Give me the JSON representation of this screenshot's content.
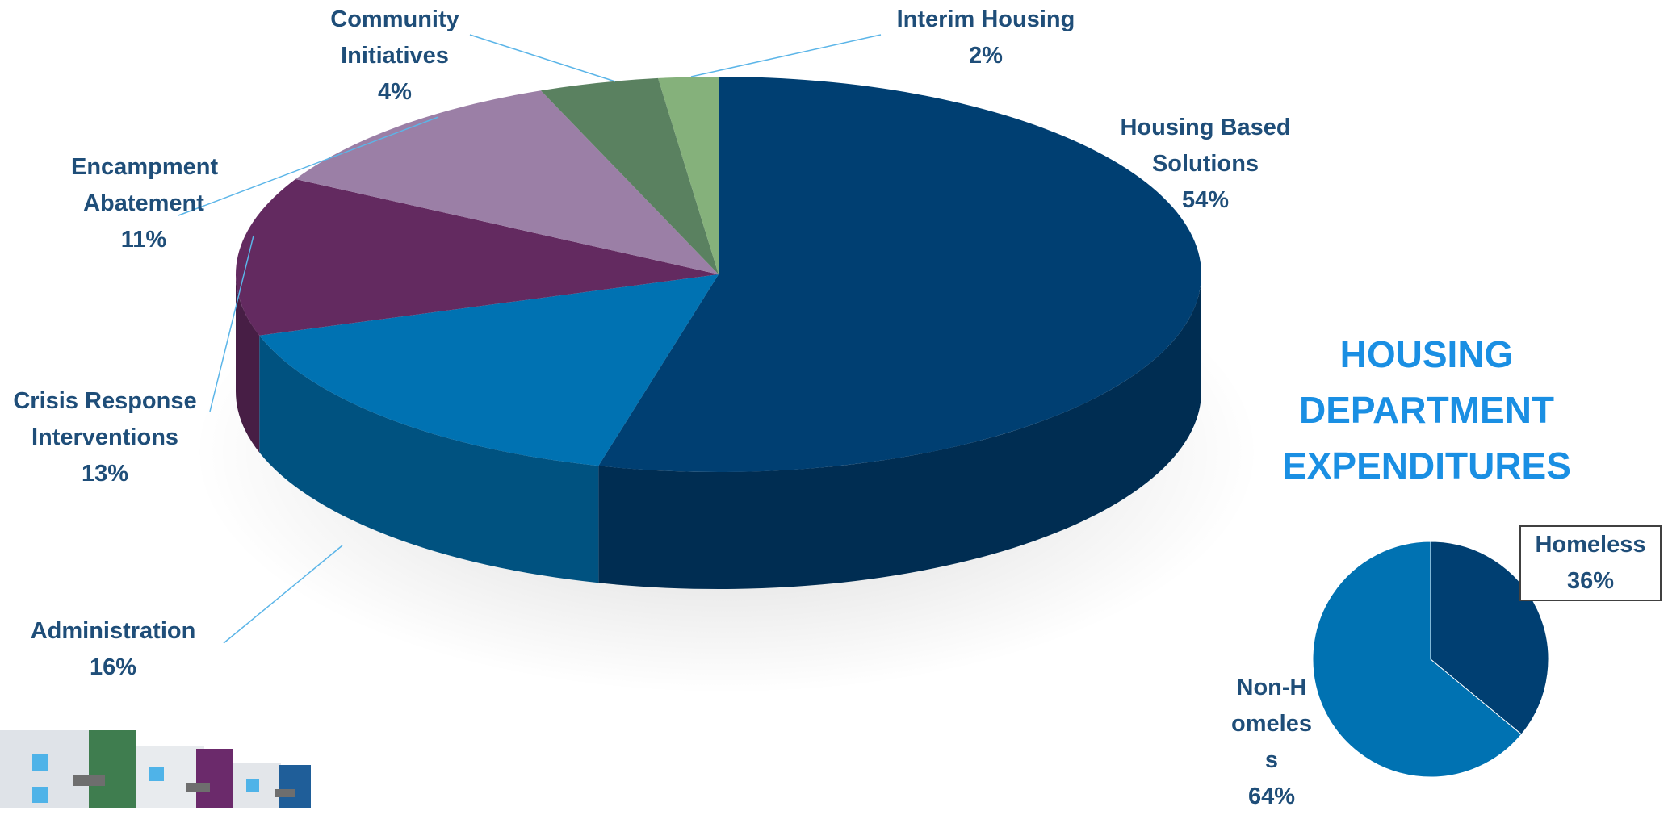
{
  "chart_data": [
    {
      "type": "pie3d",
      "categories": [
        "Housing Based Solutions",
        "Administration",
        "Crisis Response Interventions",
        "Encampment Abatement",
        "Community Initiatives",
        "Interim Housing"
      ],
      "values": [
        54,
        16,
        13,
        11,
        4,
        2
      ],
      "value_labels": [
        "54%",
        "16%",
        "13%",
        "11%",
        "4%",
        "2%"
      ],
      "colors": [
        "#003f72",
        "#0072b2",
        "#632a60",
        "#9b7fa6",
        "#5a8160",
        "#85b17b"
      ]
    },
    {
      "type": "pie",
      "title": "HOUSING DEPARTMENT EXPENDITURES",
      "categories": [
        "Homeless",
        "Non-Homeless"
      ],
      "values": [
        36,
        64
      ],
      "value_labels": [
        "36%",
        "64%"
      ],
      "colors": [
        "#003f72",
        "#0072b2"
      ]
    }
  ]
}
